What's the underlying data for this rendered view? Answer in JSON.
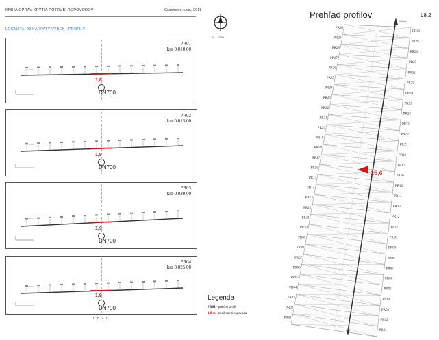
{
  "header": {
    "left": "KNIHA OPRAV KRYTIA POTRUBÍ ROPOVODOV",
    "right": "Graphson, s.r.o., 2018",
    "location": "LOKALITA: 09 KARPATY VÝBEK - PROFILY"
  },
  "profiles": [
    {
      "code": "PR01",
      "km": "km 0.010 00",
      "dn": "DN700",
      "depth": "1,8"
    },
    {
      "code": "PR02",
      "km": "km 0.015 00",
      "dn": "DN700",
      "depth": "1,9"
    },
    {
      "code": "PR03",
      "km": "km 0.020 00",
      "dn": "DN700",
      "depth": "1,9"
    },
    {
      "code": "PR04",
      "km": "km 0.025 00",
      "dn": "DN700",
      "depth": "1,9"
    }
  ],
  "sheet_label": "L 8.2.1",
  "compass": {
    "scale": "M 1:1000"
  },
  "overview": {
    "title": "Prehľad profilov",
    "code": "L8.2",
    "top_arrow_label": "Kalinov",
    "left_labels": [
      "PR30",
      "PR29",
      "PR28",
      "PR27",
      "PR26",
      "PR25",
      "PR24",
      "PR23",
      "PR22",
      "PR21",
      "PR20",
      "PR19",
      "PR18",
      "PR17",
      "PR16",
      "PR15",
      "PR14",
      "PR13",
      "PR12",
      "PR11",
      "PR10",
      "PR09",
      "PR08",
      "PR07",
      "PR06",
      "PR05",
      "PR04",
      "PR03",
      "PR02",
      "PR01"
    ],
    "right_labels": [
      "PR30",
      "PR29",
      "PR28",
      "PR27",
      "PR26",
      "PR25",
      "PR24",
      "PR23",
      "PR22",
      "PR21",
      "PR20",
      "PR19",
      "PR18",
      "PR17",
      "PR16",
      "PR15",
      "PR14",
      "PR13",
      "PR12",
      "PR11",
      "PR10",
      "PR09",
      "PR08",
      "PR07",
      "PR06",
      "PR05",
      "PR04",
      "PR03",
      "PR02",
      "PR01"
    ],
    "marker": {
      "profile": "PR14",
      "value": "25,6"
    }
  },
  "legend": {
    "title": "Legenda",
    "items": [
      {
        "key": "PR01",
        "text": "- priečny profil"
      },
      {
        "key": "1,8 m",
        "text": "- znečistená ropovodu"
      }
    ]
  },
  "colors": {
    "red": "#d01818",
    "line": "#333333",
    "mesh": "#9a9a9a",
    "blue": "#3a7abf"
  }
}
